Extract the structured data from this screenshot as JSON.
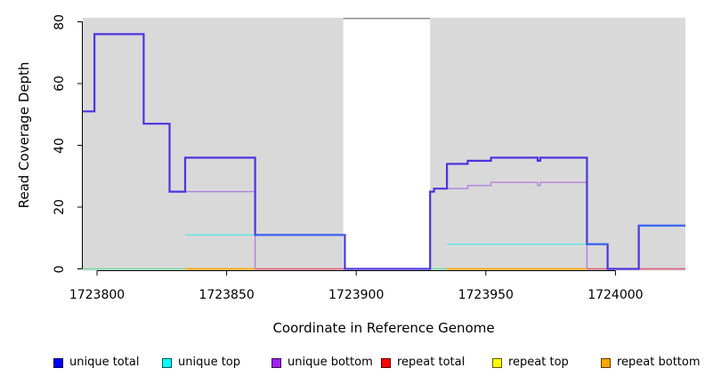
{
  "chart_data": {
    "type": "line",
    "subtype": "step-coverage-plot",
    "title": "",
    "xlabel": "Coordinate in Reference Genome",
    "ylabel": "Read Coverage Depth",
    "xlim": [
      1723794.5,
      1724027
    ],
    "ylim": [
      0,
      81.3
    ],
    "grid": false,
    "legend_position": "bottom",
    "xticks": [
      {
        "value": 1723800,
        "label": "1723800"
      },
      {
        "value": 1723850,
        "label": "1723850"
      },
      {
        "value": 1723900,
        "label": "1723900"
      },
      {
        "value": 1723950,
        "label": "1723950"
      },
      {
        "value": 1724000,
        "label": "1724000"
      }
    ],
    "yticks": [
      {
        "value": 0,
        "label": "0"
      },
      {
        "value": 20,
        "label": "20"
      },
      {
        "value": 40,
        "label": "40"
      },
      {
        "value": 60,
        "label": "60"
      },
      {
        "value": 80,
        "label": "80"
      }
    ],
    "background": {
      "plot_fill": "#d9d9d9",
      "gap_band": {
        "x0": 1723895,
        "x1": 1723928.5,
        "fill": "#ffffff",
        "top_border": "#8c8c8c"
      }
    },
    "series": [
      {
        "name": "unique total",
        "legend_color": "#0000ff",
        "steps": [
          [
            1723794.5,
            51
          ],
          [
            1723799,
            76
          ],
          [
            1723818,
            47
          ],
          [
            1723828,
            25
          ],
          [
            1723834,
            36
          ],
          [
            1723861,
            11
          ],
          [
            1723895.6,
            0
          ],
          [
            1723928.5,
            25
          ],
          [
            1723930,
            26
          ],
          [
            1723935,
            34
          ],
          [
            1723943,
            35
          ],
          [
            1723952,
            36
          ],
          [
            1723970,
            35
          ],
          [
            1723971,
            36
          ],
          [
            1723989,
            8
          ],
          [
            1723997,
            0
          ],
          [
            1724009,
            14
          ],
          [
            1724027,
            null
          ]
        ]
      },
      {
        "name": "unique top",
        "legend_color": "#00ffff",
        "steps": [
          [
            1723794.5,
            0
          ],
          [
            1723834,
            11
          ],
          [
            1723895.6,
            0
          ],
          [
            1723935,
            8
          ],
          [
            1723997,
            0
          ],
          [
            1724009,
            14
          ],
          [
            1724027,
            null
          ]
        ]
      },
      {
        "name": "unique bottom",
        "legend_color": "#a020f0",
        "steps": [
          [
            1723828,
            25
          ],
          [
            1723861,
            0
          ],
          [
            1723930,
            26
          ],
          [
            1723943,
            27
          ],
          [
            1723952,
            28
          ],
          [
            1723970,
            27
          ],
          [
            1723971,
            28
          ],
          [
            1723989,
            0
          ]
        ]
      },
      {
        "name": "repeat total",
        "legend_color": "#ff0000",
        "steps": [
          [
            1723861,
            0
          ],
          [
            1723895.6,
            0
          ],
          [
            1723989,
            0
          ],
          [
            1724027,
            null
          ]
        ]
      },
      {
        "name": "repeat top",
        "legend_color": "#ffff00",
        "steps": [
          [
            1723794.5,
            0
          ],
          [
            1723834,
            0
          ],
          [
            1723928.5,
            0
          ],
          [
            1723935,
            0
          ]
        ]
      },
      {
        "name": "repeat bottom",
        "legend_color": "#ffa500",
        "steps": [
          [
            1723834,
            0
          ],
          [
            1723861,
            0
          ],
          [
            1723935,
            0
          ],
          [
            1723989,
            0
          ]
        ]
      }
    ],
    "layers": [
      {
        "name": "baseline-overlap-green-left",
        "color": "#74d9a4",
        "width": 1.5,
        "points": [
          [
            1723794.5,
            0
          ],
          [
            1723834,
            null
          ]
        ]
      },
      {
        "name": "baseline-overlap-green-mid",
        "color": "#74d9a4",
        "width": 1.5,
        "points": [
          [
            1723928.5,
            0
          ],
          [
            1723935,
            null
          ]
        ]
      },
      {
        "name": "repeat-total-left",
        "color": "#dd5878",
        "width": 1.5,
        "points": [
          [
            1723861,
            0
          ],
          [
            1723895.6,
            null
          ]
        ]
      },
      {
        "name": "repeat-total-right",
        "color": "#dd5878",
        "width": 1.5,
        "points": [
          [
            1723989,
            0
          ],
          [
            1724027,
            null
          ]
        ]
      },
      {
        "name": "repeat-bottom-left",
        "color": "#ffa500",
        "width": 1.7,
        "points": [
          [
            1723834,
            0
          ],
          [
            1723861,
            null
          ]
        ]
      },
      {
        "name": "repeat-bottom-right",
        "color": "#ffa500",
        "width": 1.7,
        "points": [
          [
            1723935,
            0
          ],
          [
            1723989,
            null
          ]
        ]
      },
      {
        "name": "unique-top-left",
        "color": "#5ce6e6",
        "width": 1.4,
        "points": [
          [
            1723834,
            11
          ],
          [
            1723895.6,
            0
          ]
        ]
      },
      {
        "name": "unique-top-right",
        "color": "#5ce6e6",
        "width": 1.4,
        "points": [
          [
            1723935,
            8
          ],
          [
            1723997,
            0
          ]
        ]
      },
      {
        "name": "unique-top-far-right",
        "color": "#5ce6e6",
        "width": 1.4,
        "points": [
          [
            1724009,
            14
          ],
          [
            1724027,
            null
          ]
        ]
      },
      {
        "name": "unique-bottom-left",
        "color": "#b380e0",
        "width": 1.4,
        "points": [
          [
            1723828,
            25
          ],
          [
            1723861,
            0
          ]
        ]
      },
      {
        "name": "unique-bottom-right",
        "color": "#b380e0",
        "width": 1.4,
        "points": [
          [
            1723930,
            26
          ],
          [
            1723943,
            27
          ],
          [
            1723952,
            28
          ],
          [
            1723970,
            27
          ],
          [
            1723971,
            28
          ],
          [
            1723989,
            0
          ]
        ]
      },
      {
        "name": "unique-total",
        "color": "#4a35df",
        "width": 2.2,
        "points": [
          [
            1723794.5,
            51
          ],
          [
            1723799,
            76
          ],
          [
            1723818,
            47
          ],
          [
            1723828,
            25
          ],
          [
            1723834,
            36
          ],
          [
            1723861,
            11
          ],
          [
            1723895.6,
            0
          ],
          [
            1723928.5,
            25
          ],
          [
            1723930,
            26
          ],
          [
            1723935,
            34
          ],
          [
            1723943,
            35
          ],
          [
            1723952,
            36
          ],
          [
            1723970,
            35
          ],
          [
            1723971,
            36
          ],
          [
            1723989,
            8
          ],
          [
            1723997,
            0
          ],
          [
            1724009,
            14
          ],
          [
            1724027,
            null
          ]
        ]
      },
      {
        "name": "unique-total-overlap-mid",
        "color": "#3a6cf0",
        "width": 2.2,
        "points": [
          [
            1723861,
            11
          ],
          [
            1723895.6,
            null
          ]
        ]
      },
      {
        "name": "unique-total-overlap-right1",
        "color": "#3a6cf0",
        "width": 2.2,
        "points": [
          [
            1723989,
            8
          ],
          [
            1723997,
            null
          ]
        ]
      },
      {
        "name": "unique-total-overlap-right2",
        "color": "#3a6cf0",
        "width": 2.2,
        "points": [
          [
            1724009,
            14
          ],
          [
            1724027,
            null
          ]
        ]
      }
    ],
    "legend": {
      "items": [
        {
          "label": "unique total",
          "color": "#0000ff"
        },
        {
          "label": "unique top",
          "color": "#00ffff"
        },
        {
          "label": "unique bottom",
          "color": "#a020f0"
        },
        {
          "label": "repeat total",
          "color": "#ff0000"
        },
        {
          "label": "repeat top",
          "color": "#ffff00"
        },
        {
          "label": "repeat bottom",
          "color": "#ffa500"
        }
      ]
    }
  }
}
